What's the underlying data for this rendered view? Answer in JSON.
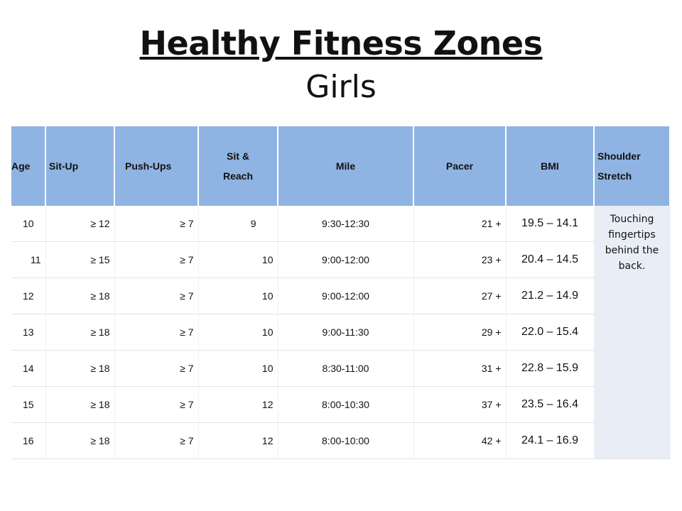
{
  "title": "Healthy Fitness Zones",
  "subtitle": "Girls",
  "table": {
    "headers": {
      "age": "Age",
      "situp": "Sit-Up",
      "pushups": "Push-Ups",
      "sitreach": "Sit & Reach",
      "mile": "Mile",
      "pacer": "Pacer",
      "bmi": "BMI",
      "shoulder": "Shoulder Stretch"
    },
    "rows": [
      {
        "age": "10",
        "situp": "≥ 12",
        "pushups": "≥ 7",
        "sitreach": "9",
        "mile": "9:30-12:30",
        "pacer": "21 +",
        "bmi": "19.5 – 14.1"
      },
      {
        "age": "11",
        "situp": "≥ 15",
        "pushups": "≥ 7",
        "sitreach": "10",
        "mile": "9:00-12:00",
        "pacer": "23 +",
        "bmi": "20.4 – 14.5"
      },
      {
        "age": "12",
        "situp": "≥ 18",
        "pushups": "≥ 7",
        "sitreach": "10",
        "mile": "9:00-12:00",
        "pacer": "27 +",
        "bmi": "21.2 – 14.9"
      },
      {
        "age": "13",
        "situp": "≥ 18",
        "pushups": "≥ 7",
        "sitreach": "10",
        "mile": "9:00-11:30",
        "pacer": "29 +",
        "bmi": "22.0 – 15.4"
      },
      {
        "age": "14",
        "situp": "≥ 18",
        "pushups": "≥ 7",
        "sitreach": "10",
        "mile": "8:30-11:00",
        "pacer": "31 +",
        "bmi": "22.8 – 15.9"
      },
      {
        "age": "15",
        "situp": "≥ 18",
        "pushups": "≥ 7",
        "sitreach": "12",
        "mile": "8:00-10:30",
        "pacer": "37 +",
        "bmi": "23.5 – 16.4"
      },
      {
        "age": "16",
        "situp": "≥ 18",
        "pushups": "≥ 7",
        "sitreach": "12",
        "mile": "8:00-10:00",
        "pacer": "42 +",
        "bmi": "24.1 – 16.9"
      }
    ],
    "shoulder_text": "Touching fingertips behind the back."
  },
  "colors": {
    "header_bg": "#8fb4e3",
    "body_bg": "#e9eef6"
  }
}
